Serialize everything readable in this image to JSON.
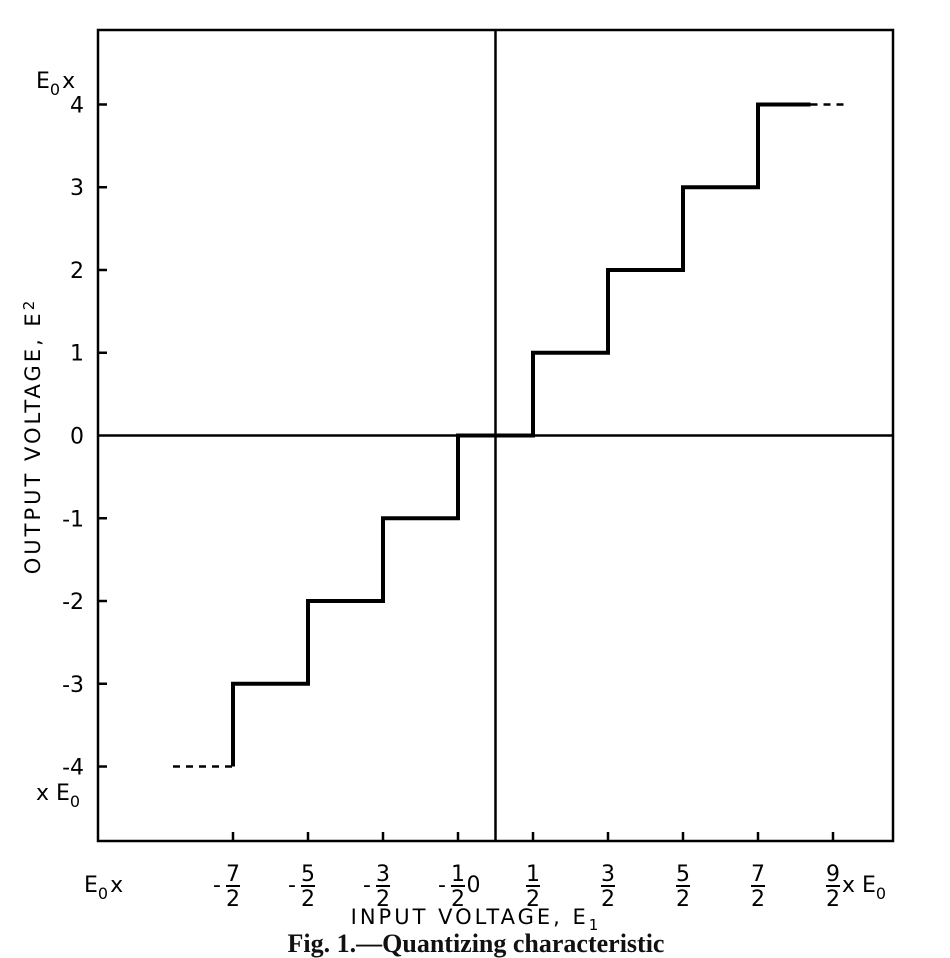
{
  "chart_data": {
    "type": "line",
    "title": "",
    "caption": "Fig. 1.—Quantizing characteristic",
    "xlabel": "INPUT VOLTAGE, E",
    "xlabel_subscript": "1",
    "ylabel": "OUTPUT VOLTAGE, E",
    "ylabel_subscript": "2",
    "x_unit_prefix": "E",
    "x_unit_prefix_subscript": "0",
    "x_unit_prefix_symbol": "x",
    "x_unit_suffix": "x E",
    "x_unit_suffix_subscript": "0",
    "y_unit_top": "E",
    "y_unit_top_subscript": "0",
    "y_unit_top_symbol": "x",
    "y_unit_bottom": "x E",
    "y_unit_bottom_subscript": "0",
    "xlim": [
      -5.3,
      5.3
    ],
    "ylim": [
      -4.9,
      4.9
    ],
    "grid": false,
    "x_ticks": [
      {
        "value": -3.5,
        "sign": "-",
        "num": "7",
        "den": "2"
      },
      {
        "value": -2.5,
        "sign": "-",
        "num": "5",
        "den": "2"
      },
      {
        "value": -1.5,
        "sign": "-",
        "num": "3",
        "den": "2"
      },
      {
        "value": -0.5,
        "sign": "-",
        "num": "1",
        "den": "2"
      },
      {
        "value": 0,
        "label": "0"
      },
      {
        "value": 0.5,
        "sign": "",
        "num": "1",
        "den": "2"
      },
      {
        "value": 1.5,
        "sign": "",
        "num": "3",
        "den": "2"
      },
      {
        "value": 2.5,
        "sign": "",
        "num": "5",
        "den": "2"
      },
      {
        "value": 3.5,
        "sign": "",
        "num": "7",
        "den": "2"
      },
      {
        "value": 4.5,
        "sign": "",
        "num": "9",
        "den": "2"
      }
    ],
    "y_ticks": [
      {
        "value": 4,
        "label": "4"
      },
      {
        "value": 3,
        "label": "3"
      },
      {
        "value": 2,
        "label": "2"
      },
      {
        "value": 1,
        "label": "1"
      },
      {
        "value": 0,
        "label": "0"
      },
      {
        "value": -1,
        "label": "-1"
      },
      {
        "value": -2,
        "label": "-2"
      },
      {
        "value": -3,
        "label": "-3"
      },
      {
        "value": -4,
        "label": "-4"
      }
    ],
    "series": [
      {
        "style": "solid",
        "x": [
          -3.5,
          -3.5,
          -2.5,
          -2.5,
          -1.5,
          -1.5,
          -0.5,
          -0.5,
          0.5,
          0.5,
          1.5,
          1.5,
          2.5,
          2.5,
          3.5,
          3.5,
          4.2
        ],
        "y": [
          -4,
          -3,
          -3,
          -2,
          -2,
          -1,
          -1,
          0,
          0,
          1,
          1,
          2,
          2,
          3,
          3,
          4,
          4
        ]
      },
      {
        "style": "dashed",
        "x": [
          4.2,
          4.7
        ],
        "y": [
          4,
          4
        ]
      },
      {
        "style": "dashed",
        "x": [
          -4.3,
          -3.5
        ],
        "y": [
          -4,
          -4
        ]
      }
    ]
  }
}
